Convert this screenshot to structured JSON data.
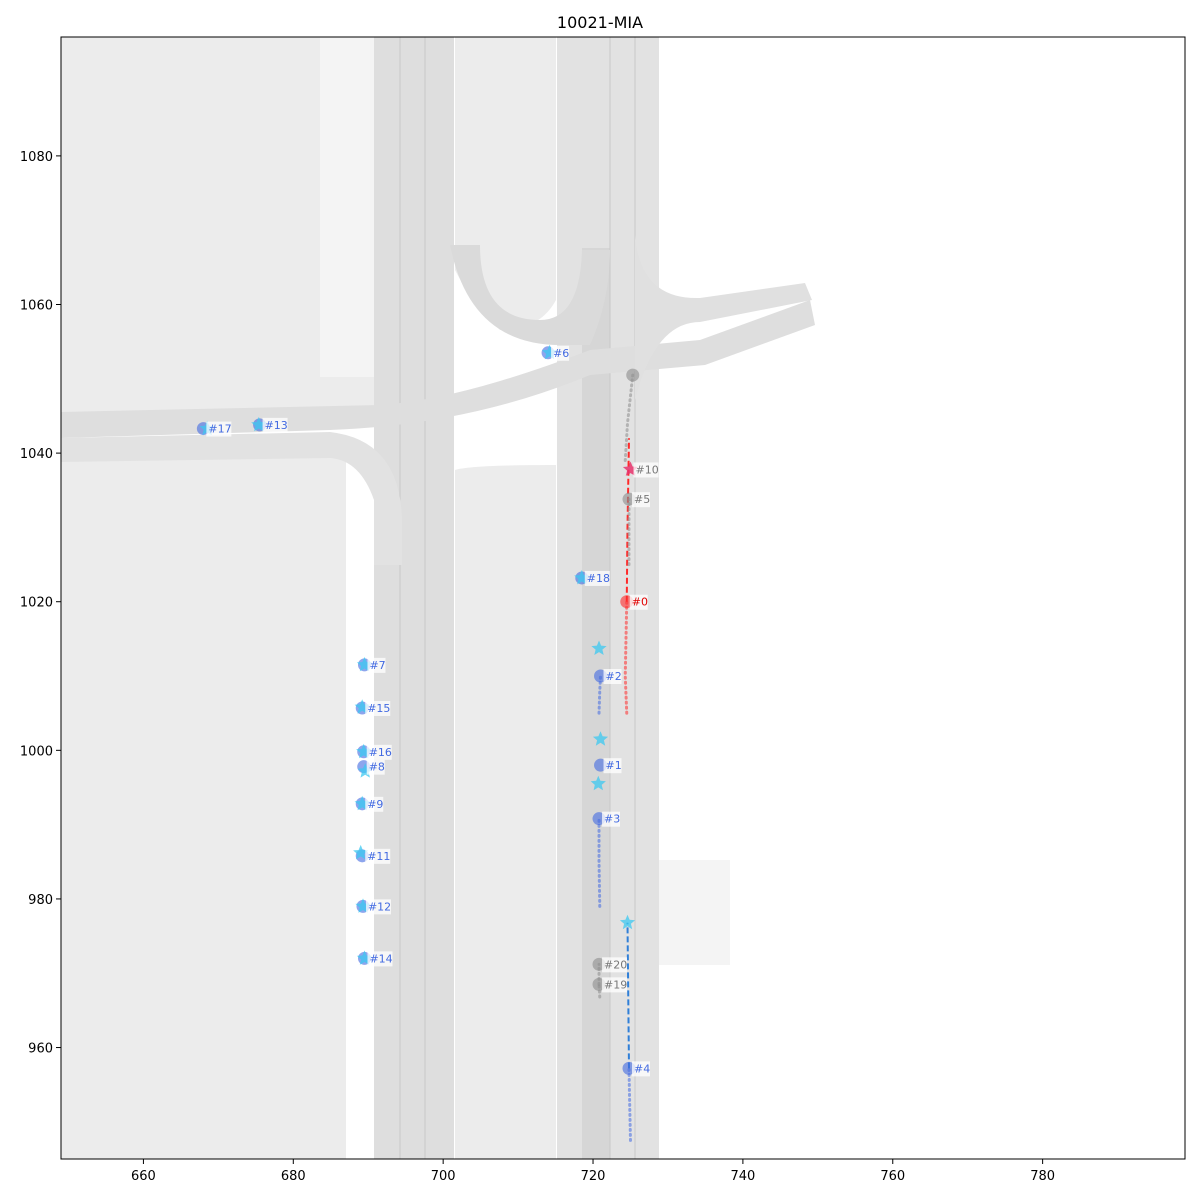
{
  "title": "10021-MIA",
  "axes": {
    "x_range": [
      649,
      799
    ],
    "y_range": [
      945,
      1096
    ],
    "x_ticks": [
      660,
      680,
      700,
      720,
      740,
      760,
      780
    ],
    "y_ticks": [
      960,
      980,
      1000,
      1020,
      1040,
      1060,
      1080
    ]
  },
  "colors": {
    "background_area": "#ececec",
    "drivable_area": "#f4f4f4",
    "lane": "#dcdcdc",
    "ego": "#ff2a2a",
    "focal": "#e8336c",
    "agent": "#4169e1",
    "agent_goal": "#3cc8f0",
    "static": "#8c8c8c"
  },
  "agents": [
    {
      "id": "#0",
      "label": "#0",
      "kind": "ego",
      "x": 724.5,
      "y": 1020.0,
      "track": [
        [
          724.5,
          1005
        ],
        [
          724.3,
          1010
        ],
        [
          724.4,
          1015
        ],
        [
          724.5,
          1020
        ]
      ],
      "future": [
        [
          724.5,
          1020
        ],
        [
          724.6,
          1030
        ],
        [
          724.8,
          1042
        ]
      ]
    },
    {
      "id": "#10",
      "label": "#10",
      "kind": "focal",
      "x": 725.0,
      "y": 1037.8,
      "star": true
    },
    {
      "id": "#5",
      "label": "#5",
      "kind": "static",
      "x": 724.8,
      "y": 1033.8,
      "track": [
        [
          724.8,
          1025
        ],
        [
          724.8,
          1033.8
        ]
      ]
    },
    {
      "id": "#t1",
      "label": "",
      "kind": "static",
      "x": 725.3,
      "y": 1050.5,
      "track": [
        [
          724.3,
          1039
        ],
        [
          724.6,
          1044
        ],
        [
          725.3,
          1050.5
        ]
      ]
    },
    {
      "id": "#2",
      "label": "#2",
      "kind": "agent",
      "x": 721.0,
      "y": 1010.0,
      "track": [
        [
          720.8,
          1005
        ],
        [
          720.9,
          1008
        ],
        [
          721.0,
          1010
        ]
      ],
      "goal": [
        720.8,
        1013.7
      ]
    },
    {
      "id": "#1",
      "label": "#1",
      "kind": "agent",
      "x": 721.0,
      "y": 998.0,
      "goal": [
        721.0,
        1001.5
      ]
    },
    {
      "id": "#3",
      "label": "#3",
      "kind": "agent",
      "x": 720.8,
      "y": 990.8,
      "track": [
        [
          720.9,
          979
        ],
        [
          720.8,
          985
        ],
        [
          720.8,
          990.8
        ]
      ],
      "goal": [
        720.7,
        995.5
      ]
    },
    {
      "id": "#4",
      "label": "#4",
      "kind": "agent",
      "x": 724.8,
      "y": 957.2,
      "track": [
        [
          725.0,
          947.5
        ],
        [
          724.9,
          952
        ],
        [
          724.8,
          957.2
        ]
      ],
      "future": [
        [
          724.8,
          957.2
        ],
        [
          724.7,
          967
        ],
        [
          724.6,
          976.8
        ]
      ],
      "goal": [
        724.6,
        976.8
      ]
    },
    {
      "id": "#20",
      "label": "#20",
      "kind": "static",
      "x": 720.8,
      "y": 971.2,
      "track": [
        [
          720.8,
          968.5
        ],
        [
          720.8,
          971.2
        ]
      ]
    },
    {
      "id": "#19",
      "label": "#19",
      "kind": "static",
      "x": 720.8,
      "y": 968.5,
      "track": [
        [
          720.9,
          966.8
        ],
        [
          720.8,
          968.5
        ]
      ]
    },
    {
      "id": "#18",
      "label": "#18",
      "kind": "agent",
      "x": 718.5,
      "y": 1023.2,
      "goal": [
        718.5,
        1023.2
      ]
    },
    {
      "id": "#6",
      "label": "#6",
      "kind": "agent",
      "x": 714.0,
      "y": 1053.5,
      "goal": [
        714.2,
        1053.5
      ]
    },
    {
      "id": "#13",
      "label": "#13",
      "kind": "agent",
      "x": 675.5,
      "y": 1043.8,
      "goal": [
        675.4,
        1043.8
      ]
    },
    {
      "id": "#17",
      "label": "#17",
      "kind": "agent",
      "x": 668.0,
      "y": 1043.3,
      "goal": [
        668.5,
        1043.3
      ]
    },
    {
      "id": "#7",
      "label": "#7",
      "kind": "agent",
      "x": 689.5,
      "y": 1011.5,
      "goal": [
        689.5,
        1011.5
      ]
    },
    {
      "id": "#15",
      "label": "#15",
      "kind": "agent",
      "x": 689.2,
      "y": 1005.7,
      "goal": [
        689.2,
        1005.8
      ]
    },
    {
      "id": "#16",
      "label": "#16",
      "kind": "agent",
      "x": 689.4,
      "y": 999.8,
      "goal": [
        689.4,
        999.8
      ]
    },
    {
      "id": "#8",
      "label": "#8",
      "kind": "agent",
      "x": 689.4,
      "y": 997.8,
      "goal": [
        689.6,
        997.2
      ]
    },
    {
      "id": "#9",
      "label": "#9",
      "kind": "agent",
      "x": 689.2,
      "y": 992.8,
      "goal": [
        689.2,
        992.8
      ]
    },
    {
      "id": "#11",
      "label": "#11",
      "kind": "agent",
      "x": 689.2,
      "y": 985.8,
      "goal": [
        689.0,
        986.2
      ]
    },
    {
      "id": "#12",
      "label": "#12",
      "kind": "agent",
      "x": 689.3,
      "y": 979.0,
      "goal": [
        689.3,
        979.0
      ]
    },
    {
      "id": "#14",
      "label": "#14",
      "kind": "agent",
      "x": 689.5,
      "y": 972.0,
      "goal": [
        689.5,
        972.0
      ]
    }
  ]
}
